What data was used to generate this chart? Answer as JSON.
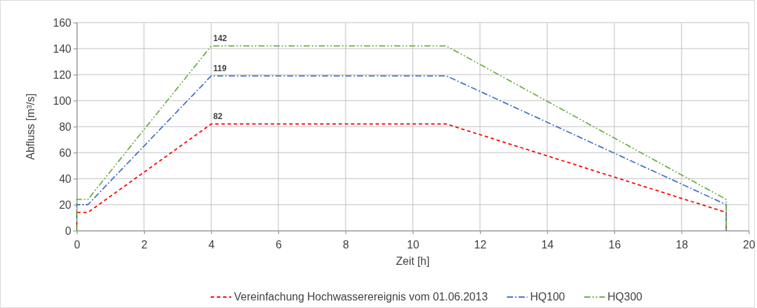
{
  "chart_data": {
    "type": "line",
    "xlabel": "Zeit [h]",
    "ylabel": "Abfluss [m³/s]",
    "xlim": [
      0,
      20
    ],
    "xticks": [
      0,
      2,
      4,
      6,
      8,
      10,
      12,
      14,
      16,
      18,
      20
    ],
    "ylim": [
      0,
      160
    ],
    "yticks": [
      0,
      20,
      40,
      60,
      80,
      100,
      120,
      140,
      160
    ],
    "grid": true,
    "legend": "bottom",
    "marker": "none",
    "series": [
      {
        "name": "Vereinfachung Hochwasserereignis vom 01.06.2013",
        "color": "#ff0000",
        "line_style": "dashed",
        "x": [
          0,
          0,
          0.33,
          4,
          11,
          19.33,
          19.33
        ],
        "values": [
          0,
          14,
          14,
          82,
          82,
          14,
          0
        ],
        "value_labels": [
          null,
          null,
          null,
          "82",
          null,
          null,
          null
        ]
      },
      {
        "name": "HQ100",
        "color": "#4472c4",
        "line_style": "dashdot",
        "x": [
          0,
          0,
          0.33,
          4,
          11,
          19.33,
          19.33
        ],
        "values": [
          0,
          20,
          20,
          119,
          119,
          20,
          0
        ],
        "value_labels": [
          null,
          null,
          null,
          "119",
          null,
          null,
          null
        ]
      },
      {
        "name": "HQ300",
        "color": "#70ad47",
        "line_style": "dashdotdot",
        "x": [
          0,
          0,
          0.33,
          4,
          11,
          19.33,
          19.33
        ],
        "values": [
          0,
          24,
          24,
          142,
          142,
          24,
          0
        ],
        "value_labels": [
          null,
          null,
          null,
          "142",
          null,
          null,
          null
        ]
      }
    ]
  }
}
